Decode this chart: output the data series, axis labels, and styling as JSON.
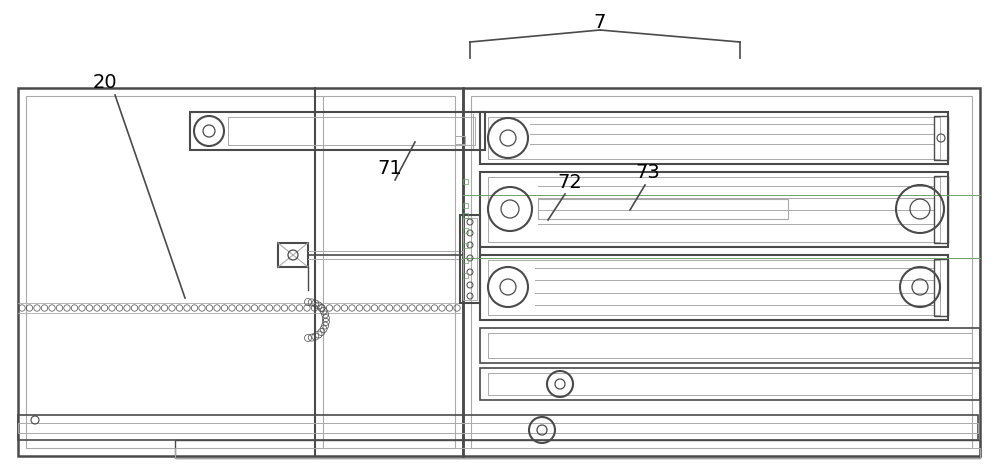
{
  "bg_color": "#ffffff",
  "lc": "#4a4a4a",
  "llc": "#aaaaaa",
  "glc": "#70a070",
  "figw": 10.0,
  "figh": 4.75,
  "dpi": 100
}
